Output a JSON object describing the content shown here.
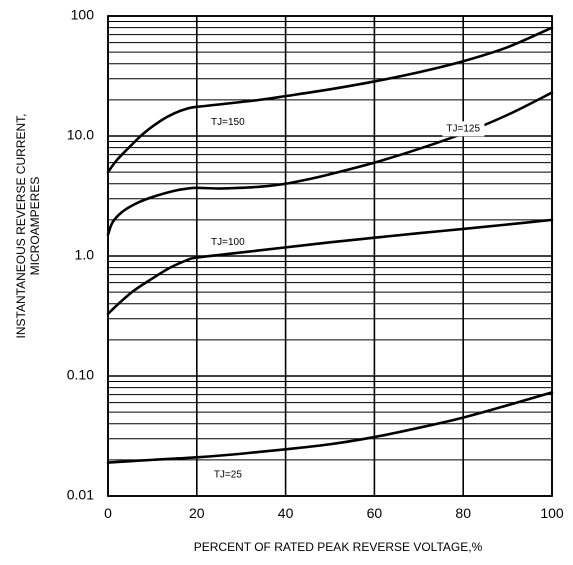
{
  "chart_data": {
    "type": "line",
    "title": "",
    "xlabel": "PERCENT OF RATED PEAK REVERSE VOLTAGE,%",
    "ylabel": [
      "INSTANTANEOUS REVERSE CURRENT,",
      "MICROAMPERES"
    ],
    "x_scale": "linear",
    "y_scale": "log",
    "xlim": [
      0,
      100
    ],
    "ylim": [
      0.01,
      100
    ],
    "x_ticks": [
      0,
      20,
      40,
      60,
      80,
      100
    ],
    "x_tick_labels": [
      "0",
      "20",
      "40",
      "60",
      "80",
      "100"
    ],
    "y_ticks": [
      0.01,
      0.1,
      1,
      10,
      100
    ],
    "y_tick_labels": [
      "0.01",
      "0.10",
      "1.0",
      "10.0",
      "100"
    ],
    "grid": true,
    "legend": "none",
    "colors": {
      "line": "#000000",
      "grid": "#000000",
      "background": "#ffffff"
    },
    "series": [
      {
        "name": "TJ=150",
        "label_text": "TJ=150",
        "label_at": [
          27,
          13
        ],
        "x": [
          0,
          2,
          5,
          8,
          12,
          15,
          18,
          20,
          25,
          30,
          35,
          40,
          50,
          60,
          70,
          80,
          90,
          100
        ],
        "y": [
          5.0,
          6.3,
          8.2,
          10.5,
          13.5,
          15.5,
          17.0,
          17.5,
          18.3,
          19.2,
          20.2,
          21.5,
          24.5,
          28.5,
          34.0,
          42.0,
          55.0,
          80.0
        ]
      },
      {
        "name": "TJ=125",
        "label_text": "TJ=125",
        "label_at": [
          80,
          11.5
        ],
        "x": [
          0,
          1,
          3,
          6,
          10,
          15,
          18,
          20,
          25,
          30,
          35,
          40,
          45,
          50,
          60,
          70,
          80,
          90,
          100
        ],
        "y": [
          1.5,
          1.9,
          2.3,
          2.7,
          3.1,
          3.5,
          3.65,
          3.7,
          3.65,
          3.7,
          3.8,
          4.0,
          4.35,
          4.8,
          6.0,
          7.8,
          10.5,
          15.0,
          23.0
        ]
      },
      {
        "name": "TJ=100",
        "label_text": "TJ=100",
        "label_at": [
          27,
          1.3
        ],
        "x": [
          0,
          3,
          6,
          10,
          14,
          18,
          20,
          30,
          40,
          50,
          60,
          70,
          80,
          90,
          100
        ],
        "y": [
          0.33,
          0.42,
          0.52,
          0.65,
          0.8,
          0.93,
          0.97,
          1.07,
          1.18,
          1.3,
          1.42,
          1.55,
          1.68,
          1.83,
          2.0
        ]
      },
      {
        "name": "TJ=25",
        "label_text": "TJ=25",
        "label_at": [
          27,
          0.015
        ],
        "x": [
          0,
          10,
          20,
          30,
          40,
          50,
          60,
          70,
          80,
          90,
          100
        ],
        "y": [
          0.019,
          0.02,
          0.021,
          0.0225,
          0.0245,
          0.027,
          0.031,
          0.037,
          0.045,
          0.057,
          0.073
        ]
      }
    ]
  }
}
